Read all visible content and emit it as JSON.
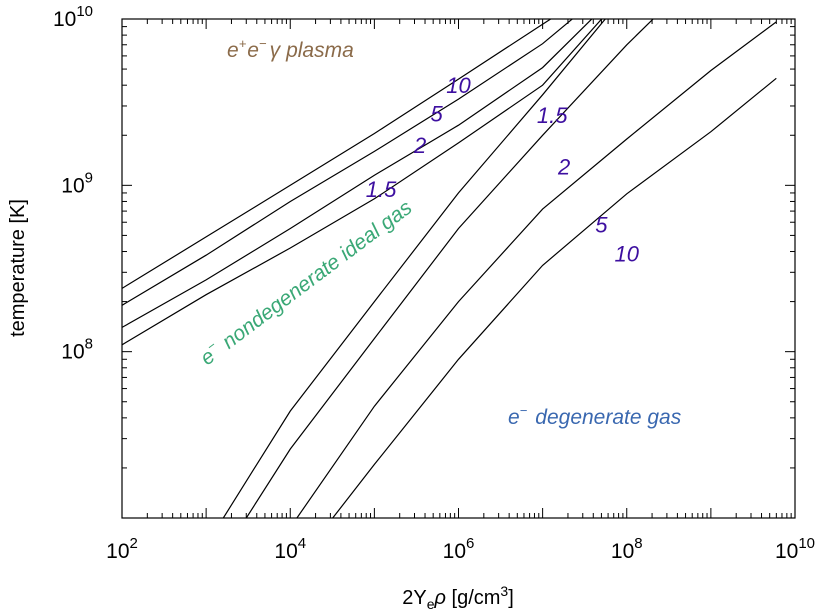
{
  "chart_data": {
    "type": "line",
    "x_scale": "log",
    "y_scale": "log",
    "xlim": [
      100,
      10000000000
    ],
    "ylim": [
      10000000,
      10000000000
    ],
    "xlabel_parts": {
      "base": "2Y",
      "sub": "e",
      "rho": "ρ",
      "unit_pre": " [g/cm",
      "sup": "3",
      "unit_post": "]"
    },
    "ylabel": "temperature [K]",
    "x_ticks": [
      {
        "base": "10",
        "exp": "2",
        "value": 100
      },
      {
        "base": "10",
        "exp": "4",
        "value": 10000
      },
      {
        "base": "10",
        "exp": "6",
        "value": 1000000
      },
      {
        "base": "10",
        "exp": "8",
        "value": 100000000
      },
      {
        "base": "10",
        "exp": "10",
        "value": 10000000000
      }
    ],
    "y_ticks": [
      {
        "base": "10",
        "exp": "8",
        "value": 100000000
      },
      {
        "base": "10",
        "exp": "9",
        "value": 1000000000
      },
      {
        "base": "10",
        "exp": "10",
        "value": 10000000000
      }
    ],
    "series": [
      {
        "name": "10 (pair plasma side)",
        "points": [
          [
            100,
            240000000
          ],
          [
            1000,
            490000000
          ],
          [
            10000,
            1000000000
          ],
          [
            100000,
            2050000000
          ],
          [
            1000000,
            4350000000
          ],
          [
            10000000,
            9300000000
          ],
          [
            28000000,
            13000000000
          ]
        ]
      },
      {
        "name": "5 (pair plasma side)",
        "points": [
          [
            100,
            190000000
          ],
          [
            1000,
            380000000
          ],
          [
            10000,
            800000000
          ],
          [
            100000,
            1600000000
          ],
          [
            1000000,
            3300000000
          ],
          [
            10000000,
            7100000000
          ],
          [
            42000000,
            13000000000
          ]
        ]
      },
      {
        "name": "2 (pair plasma side)",
        "points": [
          [
            100,
            140000000
          ],
          [
            1000,
            270000000
          ],
          [
            10000,
            550000000
          ],
          [
            100000,
            1150000000
          ],
          [
            1000000,
            2300000000
          ],
          [
            10000000,
            5100000000
          ],
          [
            65000000,
            13000000000
          ]
        ]
      },
      {
        "name": "1.5 (pair plasma side)",
        "points": [
          [
            100,
            110000000
          ],
          [
            1000,
            220000000
          ],
          [
            10000,
            420000000
          ],
          [
            100000,
            830000000
          ],
          [
            1000000,
            1800000000
          ],
          [
            10000000,
            4000000000
          ],
          [
            80000000,
            13000000000
          ]
        ]
      },
      {
        "name": "1.5 (degenerate side)",
        "points": [
          [
            1600,
            10000000
          ],
          [
            4000,
            21000000
          ],
          [
            10000,
            44000000
          ],
          [
            100000,
            200000000
          ],
          [
            1000000,
            900000000
          ],
          [
            10000000,
            3500000000
          ],
          [
            80000000,
            12500000000
          ]
        ]
      },
      {
        "name": "2 (degenerate side)",
        "points": [
          [
            3000,
            10000000
          ],
          [
            10000,
            26000000
          ],
          [
            100000,
            120000000
          ],
          [
            1000000,
            550000000
          ],
          [
            10000000,
            2000000000
          ],
          [
            100000000,
            7000000000
          ],
          [
            350000000,
            13000000000
          ]
        ]
      },
      {
        "name": "5 (degenerate side)",
        "points": [
          [
            12000,
            10000000
          ],
          [
            100000,
            47000000
          ],
          [
            1000000,
            200000000
          ],
          [
            10000000,
            720000000
          ],
          [
            100000000,
            1900000000
          ],
          [
            1000000000,
            4900000000
          ],
          [
            6000000000,
            9600000000
          ]
        ]
      },
      {
        "name": "10 (degenerate side)",
        "points": [
          [
            32000,
            10000000
          ],
          [
            100000,
            21000000
          ],
          [
            1000000,
            90000000
          ],
          [
            10000000,
            330000000
          ],
          [
            100000000,
            890000000
          ],
          [
            1000000000,
            2100000000
          ],
          [
            6000000000,
            4400000000
          ]
        ]
      }
    ],
    "contour_labels": [
      {
        "text": "10",
        "x": 1000000,
        "y": 4000000000
      },
      {
        "text": "5",
        "x": 550000,
        "y": 2700000000
      },
      {
        "text": "2",
        "x": 350000,
        "y": 1750000000
      },
      {
        "text": "1.5",
        "x": 120000,
        "y": 950000000
      },
      {
        "text": "1.5",
        "x": 13000000,
        "y": 2650000000
      },
      {
        "text": "2",
        "x": 18000000,
        "y": 1300000000
      },
      {
        "text": "5",
        "x": 50000000,
        "y": 580000000
      },
      {
        "text": "10",
        "x": 100000000,
        "y": 390000000
      }
    ],
    "regions": {
      "plasma": {
        "e": "e",
        "plus": "+",
        "e2": "e",
        "minus": "−",
        "gamma": "γ",
        "word": "plasma",
        "color": "#8b6b4a"
      },
      "ideal": {
        "e": "e",
        "minus": "−",
        "text": "nondegenerate ideal gas",
        "color": "#3aa876"
      },
      "degenerate": {
        "e": "e",
        "minus": "−",
        "text": "degenerate gas",
        "color": "#3a68b0"
      }
    }
  }
}
